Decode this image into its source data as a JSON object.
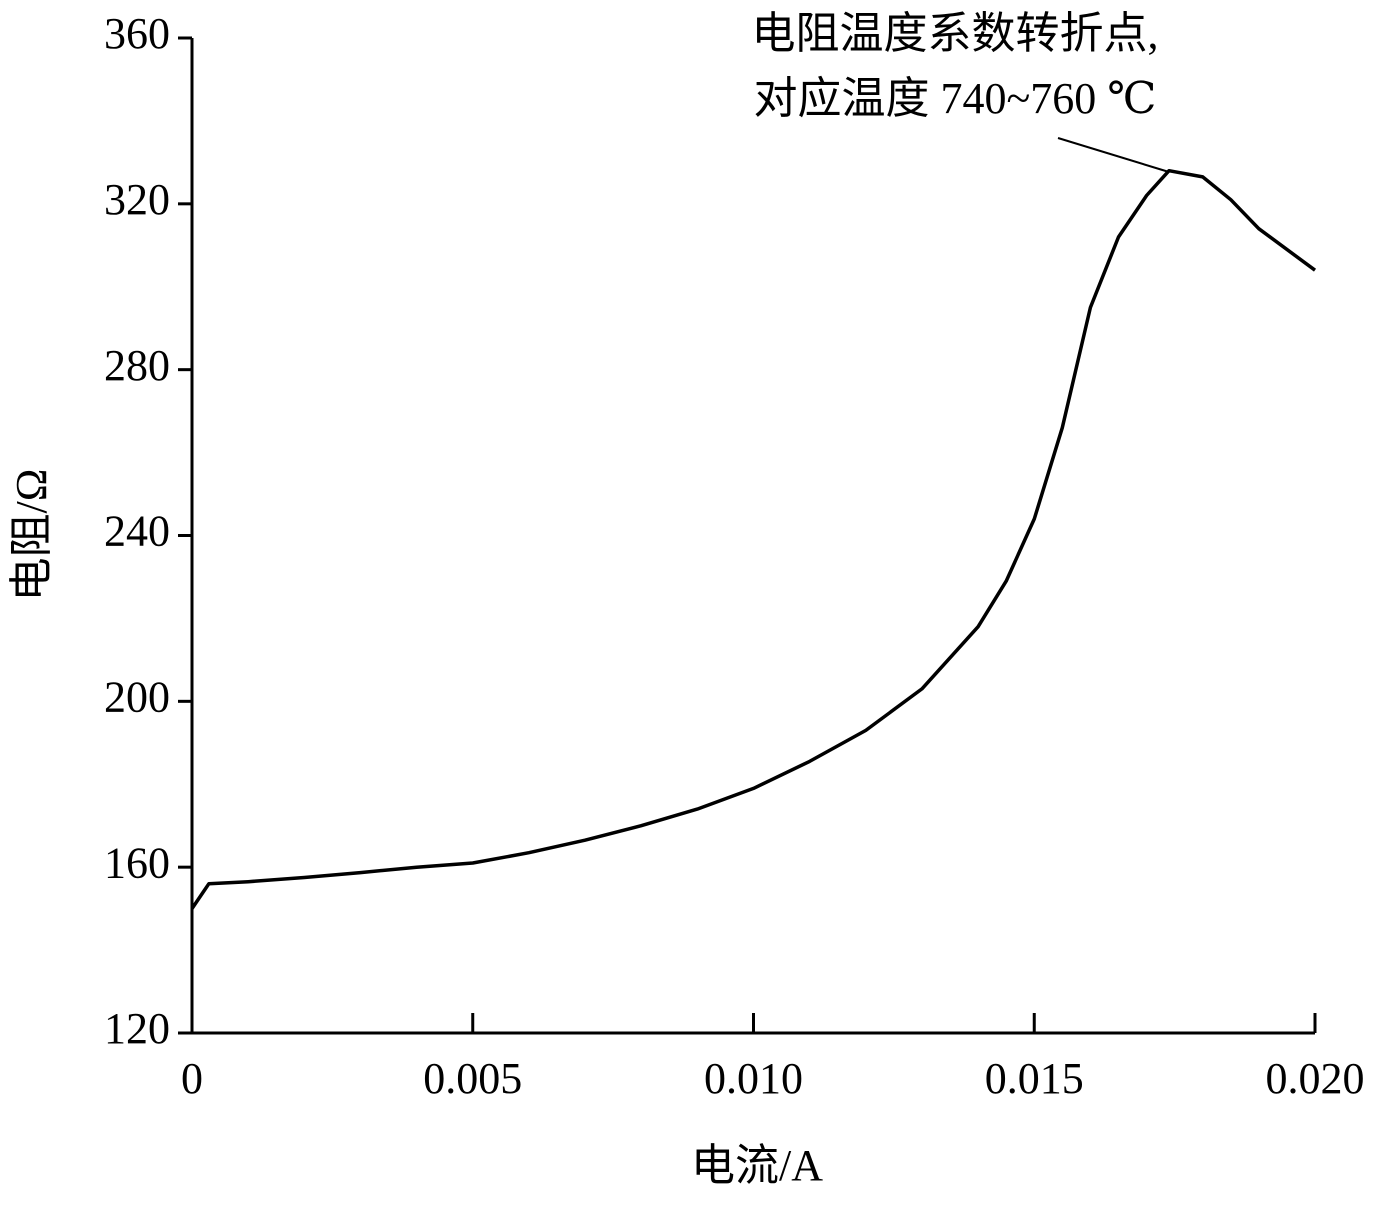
{
  "chart_data": {
    "type": "line",
    "xlabel": "电流/A",
    "ylabel": "电阻/Ω",
    "annotation": [
      "电阻温度系数转折点,",
      "对应温度 740~760 ℃"
    ],
    "x": [
      0,
      0.0003,
      0.001,
      0.002,
      0.003,
      0.004,
      0.005,
      0.006,
      0.007,
      0.008,
      0.009,
      0.01,
      0.011,
      0.012,
      0.013,
      0.014,
      0.0145,
      0.015,
      0.0155,
      0.016,
      0.0165,
      0.017,
      0.0174,
      0.018,
      0.0185,
      0.019,
      0.02
    ],
    "series": [
      {
        "color": "#000000",
        "values": [
          150,
          156,
          156.5,
          157.5,
          158.7,
          160,
          161,
          163.5,
          166.5,
          170,
          174,
          179,
          185.5,
          193,
          203,
          218,
          229,
          244,
          266,
          295,
          312,
          322,
          328,
          326.5,
          321,
          314,
          304
        ]
      }
    ],
    "xlim": [
      0,
      0.02
    ],
    "xticks": [
      0,
      0.005,
      {
        "value": 0.01,
        "label": "0.010"
      },
      0.015,
      {
        "value": 0.02,
        "label": "0.020"
      }
    ],
    "ylim": [
      120,
      360
    ],
    "yticks": [
      120,
      160,
      200,
      240,
      280,
      320,
      360
    ],
    "grid": false
  }
}
